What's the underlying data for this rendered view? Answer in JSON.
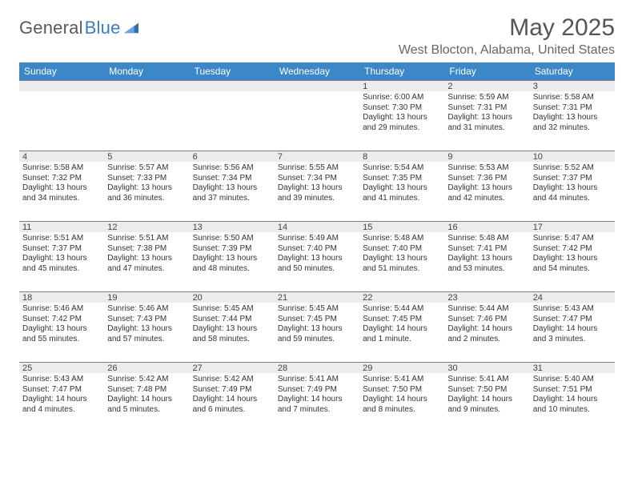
{
  "brand": {
    "name_a": "General",
    "name_b": "Blue"
  },
  "title": "May 2025",
  "location": "West Blocton, Alabama, United States",
  "style": {
    "header_bg": "#3b87c8",
    "header_fg": "#ffffff",
    "daynum_bg": "#ececec",
    "rule_color": "#7e7e7e",
    "page_bg": "#ffffff",
    "text_color": "#333333",
    "title_fontsize_pt": 22,
    "location_fontsize_pt": 12,
    "dayhead_fontsize_pt": 9,
    "daynum_fontsize_pt": 8,
    "body_fontsize_pt": 7.5,
    "columns": 7,
    "rows": 5
  },
  "day_names": [
    "Sunday",
    "Monday",
    "Tuesday",
    "Wednesday",
    "Thursday",
    "Friday",
    "Saturday"
  ],
  "weeks": [
    [
      {
        "n": "",
        "sr": "",
        "ss": "",
        "dl": ""
      },
      {
        "n": "",
        "sr": "",
        "ss": "",
        "dl": ""
      },
      {
        "n": "",
        "sr": "",
        "ss": "",
        "dl": ""
      },
      {
        "n": "",
        "sr": "",
        "ss": "",
        "dl": ""
      },
      {
        "n": "1",
        "sr": "Sunrise: 6:00 AM",
        "ss": "Sunset: 7:30 PM",
        "dl": "Daylight: 13 hours and 29 minutes."
      },
      {
        "n": "2",
        "sr": "Sunrise: 5:59 AM",
        "ss": "Sunset: 7:31 PM",
        "dl": "Daylight: 13 hours and 31 minutes."
      },
      {
        "n": "3",
        "sr": "Sunrise: 5:58 AM",
        "ss": "Sunset: 7:31 PM",
        "dl": "Daylight: 13 hours and 32 minutes."
      }
    ],
    [
      {
        "n": "4",
        "sr": "Sunrise: 5:58 AM",
        "ss": "Sunset: 7:32 PM",
        "dl": "Daylight: 13 hours and 34 minutes."
      },
      {
        "n": "5",
        "sr": "Sunrise: 5:57 AM",
        "ss": "Sunset: 7:33 PM",
        "dl": "Daylight: 13 hours and 36 minutes."
      },
      {
        "n": "6",
        "sr": "Sunrise: 5:56 AM",
        "ss": "Sunset: 7:34 PM",
        "dl": "Daylight: 13 hours and 37 minutes."
      },
      {
        "n": "7",
        "sr": "Sunrise: 5:55 AM",
        "ss": "Sunset: 7:34 PM",
        "dl": "Daylight: 13 hours and 39 minutes."
      },
      {
        "n": "8",
        "sr": "Sunrise: 5:54 AM",
        "ss": "Sunset: 7:35 PM",
        "dl": "Daylight: 13 hours and 41 minutes."
      },
      {
        "n": "9",
        "sr": "Sunrise: 5:53 AM",
        "ss": "Sunset: 7:36 PM",
        "dl": "Daylight: 13 hours and 42 minutes."
      },
      {
        "n": "10",
        "sr": "Sunrise: 5:52 AM",
        "ss": "Sunset: 7:37 PM",
        "dl": "Daylight: 13 hours and 44 minutes."
      }
    ],
    [
      {
        "n": "11",
        "sr": "Sunrise: 5:51 AM",
        "ss": "Sunset: 7:37 PM",
        "dl": "Daylight: 13 hours and 45 minutes."
      },
      {
        "n": "12",
        "sr": "Sunrise: 5:51 AM",
        "ss": "Sunset: 7:38 PM",
        "dl": "Daylight: 13 hours and 47 minutes."
      },
      {
        "n": "13",
        "sr": "Sunrise: 5:50 AM",
        "ss": "Sunset: 7:39 PM",
        "dl": "Daylight: 13 hours and 48 minutes."
      },
      {
        "n": "14",
        "sr": "Sunrise: 5:49 AM",
        "ss": "Sunset: 7:40 PM",
        "dl": "Daylight: 13 hours and 50 minutes."
      },
      {
        "n": "15",
        "sr": "Sunrise: 5:48 AM",
        "ss": "Sunset: 7:40 PM",
        "dl": "Daylight: 13 hours and 51 minutes."
      },
      {
        "n": "16",
        "sr": "Sunrise: 5:48 AM",
        "ss": "Sunset: 7:41 PM",
        "dl": "Daylight: 13 hours and 53 minutes."
      },
      {
        "n": "17",
        "sr": "Sunrise: 5:47 AM",
        "ss": "Sunset: 7:42 PM",
        "dl": "Daylight: 13 hours and 54 minutes."
      }
    ],
    [
      {
        "n": "18",
        "sr": "Sunrise: 5:46 AM",
        "ss": "Sunset: 7:42 PM",
        "dl": "Daylight: 13 hours and 55 minutes."
      },
      {
        "n": "19",
        "sr": "Sunrise: 5:46 AM",
        "ss": "Sunset: 7:43 PM",
        "dl": "Daylight: 13 hours and 57 minutes."
      },
      {
        "n": "20",
        "sr": "Sunrise: 5:45 AM",
        "ss": "Sunset: 7:44 PM",
        "dl": "Daylight: 13 hours and 58 minutes."
      },
      {
        "n": "21",
        "sr": "Sunrise: 5:45 AM",
        "ss": "Sunset: 7:45 PM",
        "dl": "Daylight: 13 hours and 59 minutes."
      },
      {
        "n": "22",
        "sr": "Sunrise: 5:44 AM",
        "ss": "Sunset: 7:45 PM",
        "dl": "Daylight: 14 hours and 1 minute."
      },
      {
        "n": "23",
        "sr": "Sunrise: 5:44 AM",
        "ss": "Sunset: 7:46 PM",
        "dl": "Daylight: 14 hours and 2 minutes."
      },
      {
        "n": "24",
        "sr": "Sunrise: 5:43 AM",
        "ss": "Sunset: 7:47 PM",
        "dl": "Daylight: 14 hours and 3 minutes."
      }
    ],
    [
      {
        "n": "25",
        "sr": "Sunrise: 5:43 AM",
        "ss": "Sunset: 7:47 PM",
        "dl": "Daylight: 14 hours and 4 minutes."
      },
      {
        "n": "26",
        "sr": "Sunrise: 5:42 AM",
        "ss": "Sunset: 7:48 PM",
        "dl": "Daylight: 14 hours and 5 minutes."
      },
      {
        "n": "27",
        "sr": "Sunrise: 5:42 AM",
        "ss": "Sunset: 7:49 PM",
        "dl": "Daylight: 14 hours and 6 minutes."
      },
      {
        "n": "28",
        "sr": "Sunrise: 5:41 AM",
        "ss": "Sunset: 7:49 PM",
        "dl": "Daylight: 14 hours and 7 minutes."
      },
      {
        "n": "29",
        "sr": "Sunrise: 5:41 AM",
        "ss": "Sunset: 7:50 PM",
        "dl": "Daylight: 14 hours and 8 minutes."
      },
      {
        "n": "30",
        "sr": "Sunrise: 5:41 AM",
        "ss": "Sunset: 7:50 PM",
        "dl": "Daylight: 14 hours and 9 minutes."
      },
      {
        "n": "31",
        "sr": "Sunrise: 5:40 AM",
        "ss": "Sunset: 7:51 PM",
        "dl": "Daylight: 14 hours and 10 minutes."
      }
    ]
  ]
}
